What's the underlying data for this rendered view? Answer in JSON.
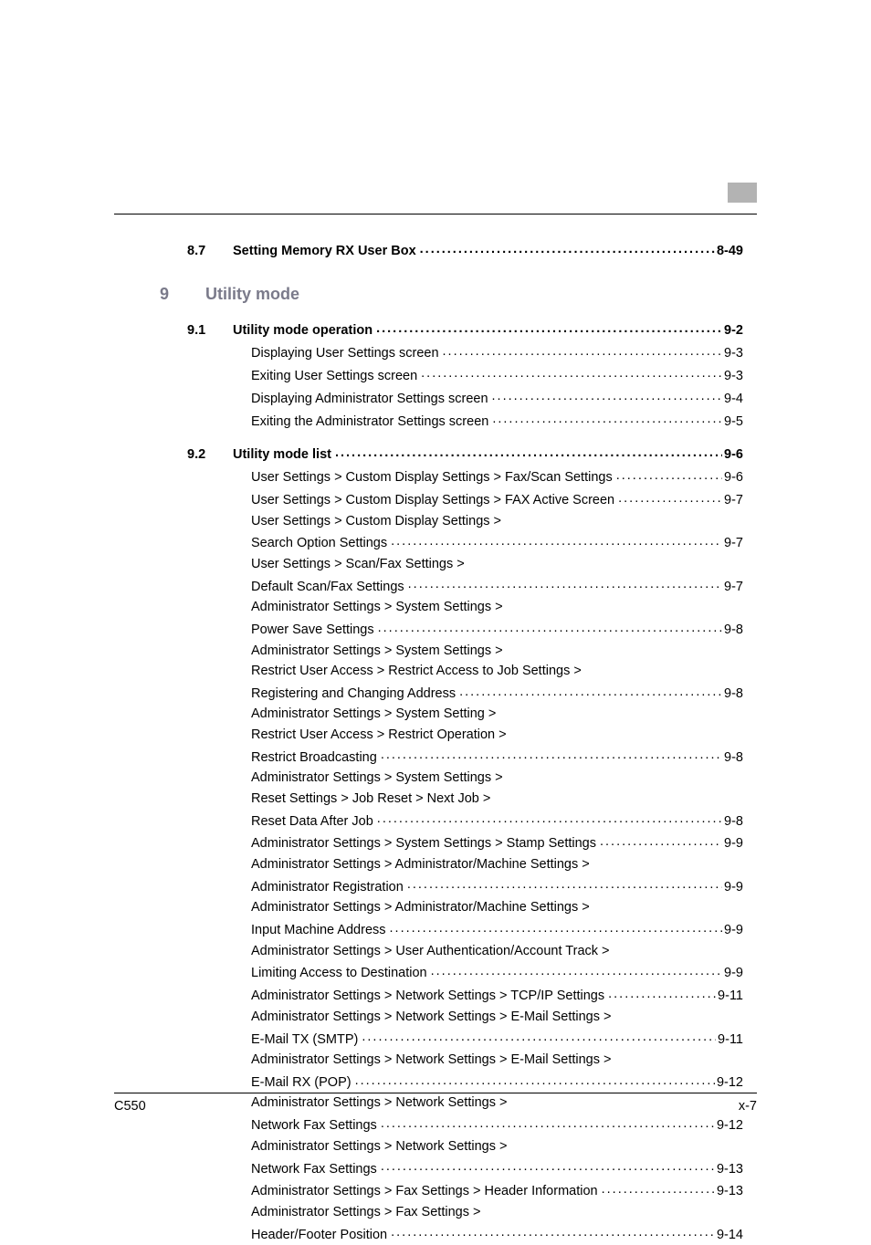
{
  "model": "C550",
  "page_number": "x-7",
  "pre_section": {
    "num": "8.7",
    "title": "Setting Memory RX User Box",
    "page": "8-49"
  },
  "chapter": {
    "num": "9",
    "title": "Utility mode"
  },
  "sections": [
    {
      "num": "9.1",
      "title": "Utility mode operation",
      "page": "9-2",
      "items": [
        {
          "label": "Displaying User Settings screen",
          "page": "9-3"
        },
        {
          "label": "Exiting User Settings screen",
          "page": "9-3"
        },
        {
          "label": "Displaying Administrator Settings screen",
          "page": "9-4"
        },
        {
          "label": "Exiting the Administrator Settings screen",
          "page": "9-5"
        }
      ]
    },
    {
      "num": "9.2",
      "title": "Utility mode list",
      "page": "9-6",
      "items": [
        {
          "label": "User Settings > Custom Display Settings > Fax/Scan Settings",
          "page": "9-6"
        },
        {
          "label": "User Settings > Custom Display Settings > FAX Active Screen",
          "page": "9-7"
        },
        {
          "label": "User Settings > Custom Display Settings >",
          "cont": "Search Option Settings",
          "page": "9-7"
        },
        {
          "label": "User Settings > Scan/Fax Settings >",
          "cont": "Default Scan/Fax Settings",
          "page": "9-7"
        },
        {
          "label": "Administrator Settings > System Settings >",
          "cont": "Power Save Settings",
          "page": "9-8"
        },
        {
          "label": "Administrator Settings > System Settings >",
          "cont": "Restrict User Access > Restrict Access to Job Settings >",
          "cont2": "Registering and Changing Address",
          "page": "9-8"
        },
        {
          "label": "Administrator Settings > System Setting >",
          "cont": "Restrict User Access > Restrict Operation >",
          "cont2": "Restrict Broadcasting",
          "page": "9-8"
        },
        {
          "label": "Administrator Settings > System Settings >",
          "cont": "Reset Settings > Job Reset > Next Job >",
          "cont2": "Reset Data After Job",
          "page": "9-8"
        },
        {
          "label": "Administrator Settings > System Settings > Stamp Settings",
          "page": "9-9"
        },
        {
          "label": "Administrator Settings > Administrator/Machine Settings >",
          "cont": "Administrator Registration",
          "page": "9-9"
        },
        {
          "label": "Administrator Settings > Administrator/Machine Settings >",
          "cont": "Input Machine Address",
          "page": "9-9"
        },
        {
          "label": "Administrator Settings > User Authentication/Account Track >",
          "cont": "Limiting Access to Destination",
          "page": "9-9"
        },
        {
          "label": "Administrator Settings > Network Settings > TCP/IP Settings",
          "page": "9-11"
        },
        {
          "label": "Administrator Settings > Network Settings > E-Mail Settings >",
          "cont": "E-Mail TX (SMTP)",
          "page": "9-11"
        },
        {
          "label": "Administrator Settings > Network Settings > E-Mail Settings >",
          "cont": "E-Mail RX (POP)",
          "page": "9-12"
        },
        {
          "label": "Administrator Settings > Network Settings >",
          "cont": "Network Fax Settings",
          "page": "9-12"
        },
        {
          "label": "Administrator Settings > Network Settings >",
          "cont": "Network Fax Settings",
          "page": "9-13"
        },
        {
          "label": "Administrator Settings > Fax Settings > Header Information",
          "page": "9-13"
        },
        {
          "label": "Administrator Settings > Fax Settings >",
          "cont": "Header/Footer Position",
          "page": "9-14"
        }
      ]
    }
  ]
}
